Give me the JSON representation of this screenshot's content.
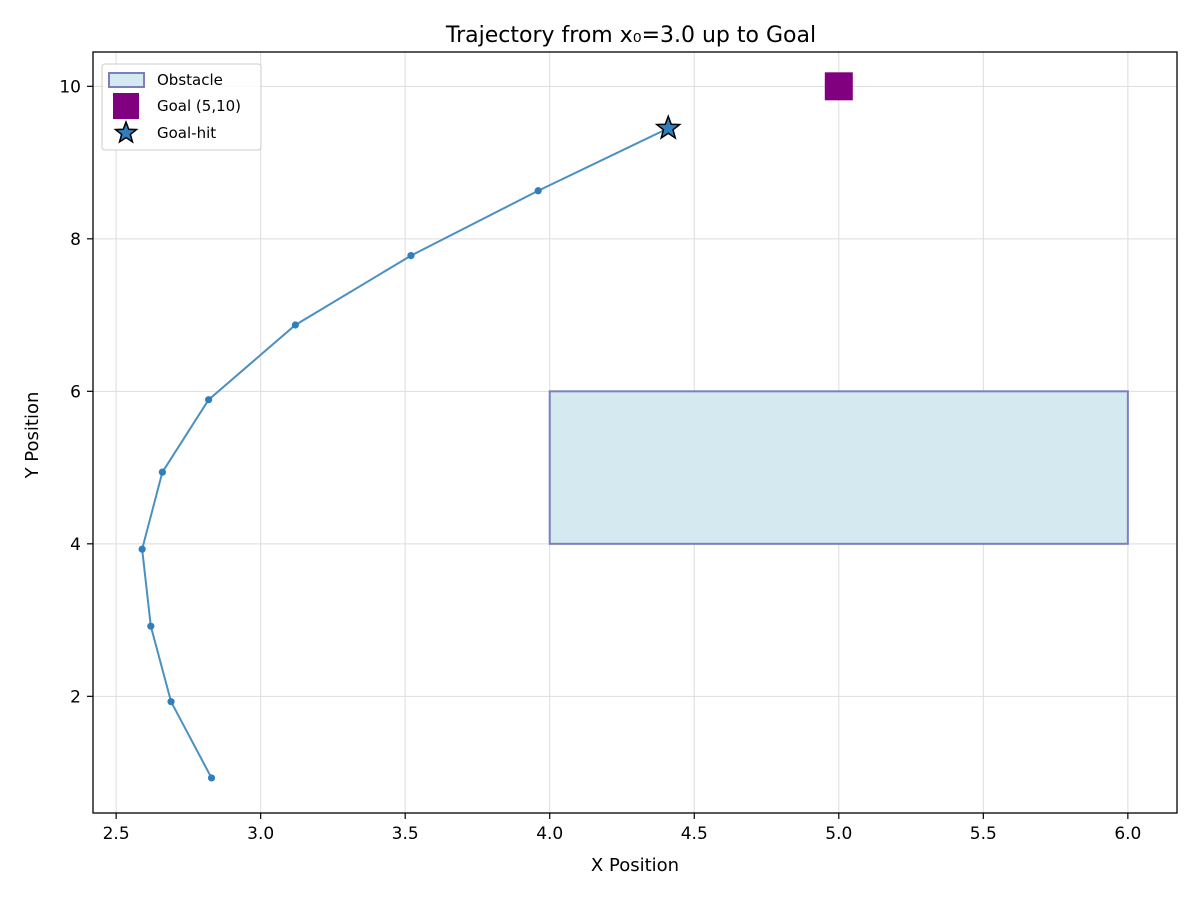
{
  "chart_data": {
    "type": "line",
    "title": "Trajectory from x₀=3.0 up to Goal",
    "xlabel": "X Position",
    "ylabel": "Y Position",
    "xlim": [
      2.42,
      6.17
    ],
    "ylim": [
      0.47,
      10.45
    ],
    "grid": true,
    "legend_position": "top-left",
    "x_ticks": [
      2.5,
      3.0,
      3.5,
      4.0,
      4.5,
      5.0,
      5.5,
      6.0
    ],
    "x_tick_labels": [
      "2.5",
      "3.0",
      "3.5",
      "4.0",
      "4.5",
      "5.0",
      "5.5",
      "6.0"
    ],
    "y_ticks": [
      2,
      4,
      6,
      8,
      10
    ],
    "y_tick_labels": [
      "2",
      "4",
      "6",
      "8",
      "10"
    ],
    "series": [
      {
        "name": "",
        "color": "#4a90c0",
        "x": [
          2.83,
          2.69,
          2.62,
          2.59,
          2.66,
          2.82,
          3.12,
          3.52,
          3.96,
          4.41
        ],
        "y": [
          0.93,
          1.93,
          2.92,
          3.93,
          4.94,
          5.89,
          6.87,
          7.78,
          8.63,
          9.45
        ]
      }
    ],
    "obstacle": {
      "x": [
        4.0,
        6.0
      ],
      "y": [
        4.0,
        6.0
      ],
      "fill": "#d4eaf0",
      "edge": "#7b7fc2"
    },
    "goal": {
      "x": 5.0,
      "y": 10.0,
      "color": "#800080"
    },
    "goal_hit": {
      "x": 4.41,
      "y": 9.45,
      "color": "#2f7fbf"
    },
    "legend": [
      {
        "label": "Obstacle",
        "kind": "obstacle"
      },
      {
        "label": "Goal (5,10)",
        "kind": "goal"
      },
      {
        "label": "Goal-hit",
        "kind": "star"
      }
    ]
  }
}
